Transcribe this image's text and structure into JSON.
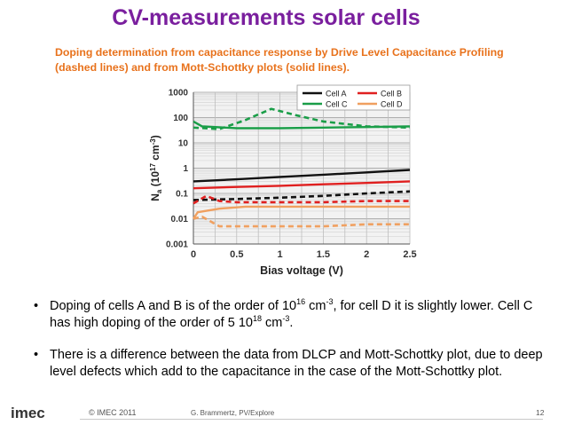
{
  "slide": {
    "title": "CV-measurements solar cells",
    "subtitle": "Doping determination from capacitance response by Drive Level Capacitance Profiling (dashed lines) and from Mott-Schottky plots (solid lines).",
    "bullet1": {
      "part1": "Doping of cells A and B is of the order of 10",
      "sup1": "16",
      "part2": " cm",
      "sup2": "-3",
      "part3": ", for cell D it is slightly lower. Cell C has high doping of the order of 5 10",
      "sup3": "18",
      "part4": " cm",
      "sup4": "-3",
      "part5": "."
    },
    "bullet2": "There is a difference between the data from DLCP and Mott-Schottky plot, due to deep level defects which add to the capacitance in the case of the Mott-Schottky plot.",
    "bullet_symbol": "•"
  },
  "footer": {
    "logo": "imec",
    "copyright": "© IMEC 2011",
    "author": "G. Brammertz, PV/Explore",
    "page_number": "12"
  },
  "chart_data": {
    "type": "line",
    "xlabel": "Bias voltage (V)",
    "ylabel": "Na (10^17 cm^-3)",
    "ylabel_parts": {
      "n": "N",
      "sub": "a",
      "rest1": " (10",
      "sup1": "17",
      "rest2": " cm",
      "sup2": "-3",
      "rest3": ")"
    },
    "xlim": [
      0,
      2.5
    ],
    "ylim": [
      0.001,
      1000
    ],
    "yscale": "log",
    "xticks": [
      "0",
      "0.5",
      "1",
      "1.5",
      "2",
      "2.5"
    ],
    "yticks": [
      "0.001",
      "0.01",
      "0.1",
      "1",
      "10",
      "100",
      "1000"
    ],
    "grid": true,
    "legend_position": "top-right",
    "series": [
      {
        "name": "Cell A",
        "color": "#111111",
        "style": "solid",
        "x": [
          0,
          0.5,
          1,
          1.5,
          2,
          2.5
        ],
        "y": [
          0.3,
          0.36,
          0.45,
          0.55,
          0.68,
          0.85
        ]
      },
      {
        "name": "Cell A",
        "color": "#111111",
        "style": "dashed",
        "x": [
          0,
          0.5,
          1,
          1.5,
          2,
          2.5
        ],
        "y": [
          0.055,
          0.06,
          0.068,
          0.08,
          0.1,
          0.12
        ]
      },
      {
        "name": "Cell B",
        "color": "#e02020",
        "style": "solid",
        "x": [
          0,
          0.5,
          1,
          1.5,
          2,
          2.5
        ],
        "y": [
          0.16,
          0.18,
          0.2,
          0.23,
          0.26,
          0.3
        ]
      },
      {
        "name": "Cell B",
        "color": "#e02020",
        "style": "dashed",
        "x": [
          0,
          0.15,
          0.3,
          0.5,
          1,
          1.5,
          2,
          2.5
        ],
        "y": [
          0.04,
          0.08,
          0.05,
          0.045,
          0.045,
          0.045,
          0.05,
          0.05
        ]
      },
      {
        "name": "Cell C",
        "color": "#1a9e48",
        "style": "solid",
        "x": [
          0,
          0.1,
          0.5,
          1,
          1.5,
          2,
          2.5
        ],
        "y": [
          70,
          45,
          38,
          38,
          40,
          42,
          45
        ]
      },
      {
        "name": "Cell C",
        "color": "#1a9e48",
        "style": "dashed",
        "x": [
          0,
          0.3,
          0.6,
          0.9,
          1.2,
          1.5,
          2,
          2.5
        ],
        "y": [
          40,
          35,
          80,
          220,
          120,
          70,
          45,
          40
        ]
      },
      {
        "name": "Cell D",
        "color": "#f0a060",
        "style": "solid",
        "x": [
          0,
          0.05,
          0.3,
          0.6,
          1,
          1.5,
          2,
          2.5
        ],
        "y": [
          0.01,
          0.018,
          0.025,
          0.03,
          0.03,
          0.03,
          0.03,
          0.03
        ]
      },
      {
        "name": "Cell D",
        "color": "#f0a060",
        "style": "dashed",
        "x": [
          0,
          0.1,
          0.3,
          0.5,
          1,
          1.5,
          2,
          2.5
        ],
        "y": [
          0.01,
          0.012,
          0.005,
          0.005,
          0.005,
          0.005,
          0.006,
          0.006
        ]
      }
    ]
  }
}
